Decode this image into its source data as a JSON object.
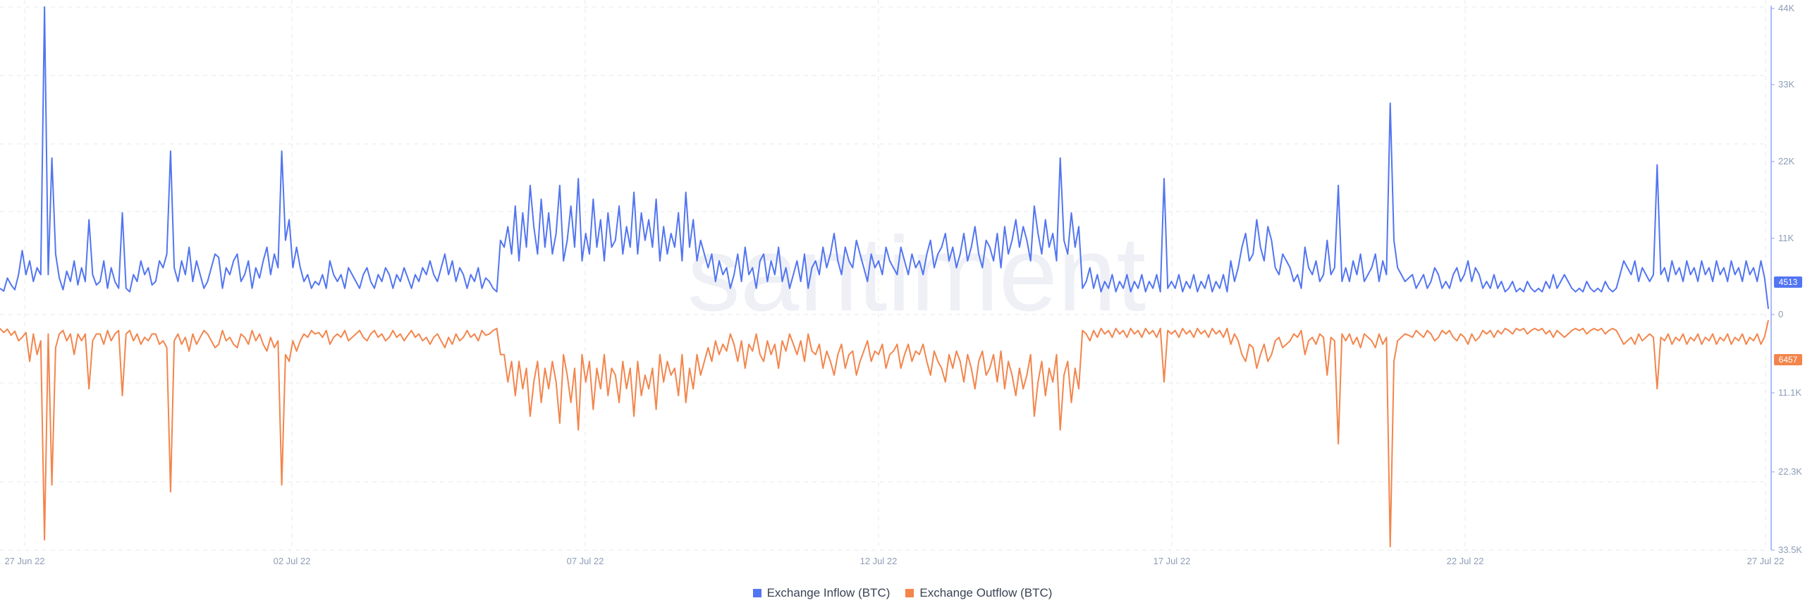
{
  "watermark": "santiment",
  "colors": {
    "inflow": "#5275f1",
    "outflow": "#f3854c",
    "grid": "#e6e9ef",
    "axis": "#8ea6f5"
  },
  "legend": [
    {
      "label": "Exchange Inflow (BTC)",
      "color": "#5275f1"
    },
    {
      "label": "Exchange Outflow (BTC)",
      "color": "#f3854c"
    }
  ],
  "axis": {
    "x_ticks": [
      "27 Jun 22",
      "02 Jul 22",
      "07 Jul 22",
      "12 Jul 22",
      "17 Jul 22",
      "22 Jul 22",
      "27 Jul 22"
    ],
    "y_top_ticks": [
      "44K",
      "33K",
      "22K",
      "11K",
      "0"
    ],
    "y_bottom_ticks": [
      "11.1K",
      "22.3K",
      "33.5K"
    ]
  },
  "badges": {
    "inflow": "4513",
    "outflow": "6457"
  },
  "chart_data": {
    "type": "line",
    "x_range": [
      "2022-06-27",
      "2022-07-27"
    ],
    "interval": "hourly",
    "grid": true,
    "legend_position": "bottom-center",
    "panels": [
      {
        "series": "Exchange Inflow (BTC)",
        "ylim": [
          0,
          44000
        ],
        "baseline": 2800,
        "values_k": [
          3,
          2.6,
          4.5,
          3.5,
          2.8,
          5,
          8.5,
          5,
          7,
          4,
          6,
          5,
          44,
          5,
          22,
          8,
          4.5,
          2.8,
          5.5,
          4,
          7,
          3.5,
          6,
          4,
          13,
          5,
          3.5,
          4,
          7,
          3,
          6,
          4,
          3,
          14,
          3,
          2.5,
          5,
          4,
          7,
          5,
          6,
          3.5,
          4,
          7,
          6,
          8,
          23,
          6,
          4,
          7,
          5,
          9,
          4,
          7,
          5,
          3,
          4,
          6,
          8,
          7.5,
          3,
          6,
          5,
          7,
          8,
          4,
          5,
          7,
          3,
          6,
          4.5,
          7,
          9,
          5,
          8,
          6,
          23,
          10,
          13,
          6,
          9,
          6,
          4,
          5,
          3,
          4,
          3.5,
          5,
          3,
          7,
          5,
          4,
          5,
          3,
          6,
          5,
          4,
          3,
          5,
          6,
          4,
          3,
          5,
          4,
          6,
          5,
          3,
          5,
          4,
          6,
          4.5,
          3,
          5,
          4,
          6,
          5,
          7,
          5,
          4,
          6,
          8,
          5,
          7,
          4,
          6,
          5,
          3,
          5,
          4,
          6,
          3,
          4.5,
          4,
          3,
          2.5,
          10,
          9,
          12,
          8,
          15,
          7,
          14,
          9,
          18,
          12,
          8,
          16,
          9,
          14,
          8,
          11,
          18,
          7,
          10,
          15,
          9,
          19,
          7,
          11,
          8,
          16,
          9,
          13,
          7,
          14,
          9,
          10,
          15,
          8,
          12,
          9,
          17,
          8,
          14,
          10,
          13,
          9,
          16,
          7,
          12,
          8,
          11,
          9,
          14,
          7,
          17,
          9,
          13,
          7,
          10,
          8,
          6,
          8,
          4,
          7,
          5,
          6,
          3,
          5,
          8,
          4,
          9,
          5,
          6,
          3,
          7,
          8,
          4,
          7,
          5,
          9,
          4,
          6,
          3,
          5,
          7,
          4,
          8,
          3,
          6,
          7,
          5,
          9,
          6,
          8,
          11,
          7,
          5,
          9,
          7,
          6,
          10,
          8,
          6,
          4,
          8,
          6,
          7,
          5,
          9,
          7,
          6,
          5,
          9,
          7,
          5,
          8,
          6,
          7,
          5,
          8,
          10,
          6,
          8,
          9,
          11,
          7,
          9,
          6,
          8,
          11,
          7,
          9,
          12,
          8,
          6,
          10,
          9,
          7,
          11,
          6,
          12,
          8,
          10,
          13,
          9,
          12,
          10,
          7,
          15,
          11,
          8,
          13,
          9,
          11,
          7,
          22,
          10,
          8,
          14,
          9,
          12,
          3,
          4,
          6,
          3,
          5,
          2.5,
          4,
          3,
          5,
          2.5,
          4,
          3,
          5,
          2.5,
          4,
          3,
          5,
          2.5,
          4,
          3,
          5,
          2.5,
          19,
          3,
          4,
          3,
          5,
          2.5,
          4,
          3,
          5,
          2.5,
          4,
          3,
          5,
          2.5,
          4,
          3,
          5,
          2.5,
          7,
          4,
          6,
          9,
          11,
          7,
          8,
          13,
          9,
          7,
          12,
          10,
          6,
          5,
          8,
          7,
          6,
          4,
          5,
          3,
          9,
          6,
          5,
          7,
          4,
          5,
          10,
          5,
          6,
          18,
          4,
          6,
          4,
          7,
          5,
          8,
          4,
          5,
          6,
          8,
          4,
          7,
          5,
          30,
          10,
          6,
          5,
          4,
          4.5,
          5,
          3,
          4,
          5,
          3,
          4,
          6,
          5,
          3,
          4,
          3,
          5,
          6,
          4,
          5,
          7,
          4,
          6,
          5,
          3,
          4,
          3,
          5,
          3,
          4,
          2.5,
          3,
          4,
          2.5,
          3,
          2.5,
          4,
          3,
          2.5,
          3,
          2.5,
          4,
          3,
          5,
          3,
          4,
          5,
          4,
          3,
          2.5,
          3,
          2.5,
          4,
          3,
          2.5,
          3,
          2.5,
          4,
          3,
          2.5,
          3,
          5,
          7,
          6,
          5,
          7,
          4,
          6,
          5,
          4,
          5,
          21,
          5,
          6,
          4,
          7,
          5,
          6,
          4,
          7,
          5,
          6,
          4,
          7,
          5,
          6,
          4,
          7,
          5,
          6,
          4,
          7,
          5,
          6,
          4,
          7,
          5,
          6,
          4,
          7,
          4.5,
          0
        ],
        "current_value": 4513
      },
      {
        "series": "Exchange Outflow (BTC)",
        "ylim": [
          0,
          33500
        ],
        "baseline": 1300,
        "values_k": [
          1.2,
          1.8,
          1.3,
          2.2,
          1.6,
          3,
          2.5,
          1.8,
          6,
          2,
          5,
          3,
          32,
          2,
          24,
          4,
          2,
          1.5,
          3,
          2,
          5,
          2,
          3,
          2,
          10,
          3,
          2,
          2,
          3.5,
          1.5,
          3,
          2,
          1.5,
          11,
          2,
          1.5,
          3,
          2,
          3.5,
          2.5,
          3,
          2,
          2,
          3.5,
          3,
          4,
          25,
          3,
          2,
          3.5,
          2.5,
          4.5,
          2,
          3.5,
          2.5,
          1.5,
          2,
          3,
          4,
          3.5,
          1.5,
          3,
          2.5,
          3.5,
          4,
          2,
          2.5,
          3.5,
          1.5,
          3,
          2,
          3.5,
          4.5,
          2.5,
          4,
          3,
          24,
          5,
          6,
          3,
          4.5,
          3,
          2,
          2.5,
          1.5,
          2,
          1.8,
          2.5,
          1.5,
          3.5,
          2.5,
          2,
          2.5,
          1.5,
          3,
          2.5,
          2,
          1.5,
          2.5,
          3,
          2,
          1.5,
          2.5,
          2,
          3,
          2.5,
          1.5,
          2.5,
          2,
          3,
          2.2,
          1.5,
          2.5,
          2,
          3,
          2.5,
          3.5,
          2.5,
          2,
          3,
          4,
          2.5,
          3.5,
          2,
          3,
          2.5,
          1.5,
          2.5,
          2,
          3,
          1.5,
          2.2,
          2,
          1.5,
          1.2,
          5,
          5,
          9,
          6,
          11,
          6,
          10,
          7,
          14,
          9,
          6,
          12,
          7,
          10,
          6,
          9,
          15,
          5,
          8,
          12,
          7,
          16,
          5,
          9,
          6,
          13,
          7,
          10,
          5,
          11,
          7,
          8,
          12,
          6,
          10,
          7,
          14,
          6,
          11,
          8,
          10,
          7,
          13,
          5,
          9,
          6,
          8,
          7,
          11,
          5,
          12,
          7,
          10,
          5,
          8,
          6,
          4,
          6,
          3,
          5,
          3.5,
          4.5,
          2,
          3.5,
          6,
          3,
          7,
          3.5,
          4.5,
          2,
          5,
          6,
          3,
          5,
          3.5,
          7,
          3,
          4.5,
          2,
          3.5,
          5,
          3,
          6,
          2,
          4.5,
          5,
          3.5,
          7,
          4.5,
          6,
          8,
          5,
          3.5,
          7,
          5,
          4.5,
          8,
          6,
          4.5,
          3,
          6,
          4.5,
          5,
          3.5,
          7,
          5,
          4.5,
          3.5,
          7,
          5,
          3.5,
          6,
          4.5,
          5,
          3.5,
          6,
          8,
          4.5,
          6,
          7,
          9,
          5,
          7,
          4.5,
          6,
          9,
          5,
          7,
          10,
          6,
          4.5,
          8,
          7,
          5,
          9,
          4.5,
          10,
          6,
          8,
          11,
          7,
          10,
          8,
          5,
          14,
          9,
          6,
          11,
          7,
          9,
          5,
          16,
          8,
          6,
          12,
          7,
          10,
          1.5,
          2,
          3,
          1.5,
          2.5,
          1.2,
          2,
          1.5,
          2.5,
          1.2,
          2,
          1.5,
          2.5,
          1.2,
          2,
          1.5,
          2.5,
          1.2,
          2,
          1.5,
          2.5,
          1.2,
          9,
          1.5,
          2,
          1.5,
          2.5,
          1.2,
          2,
          1.5,
          2.5,
          1.2,
          2,
          1.5,
          2.5,
          1.2,
          2,
          1.5,
          2.5,
          1.2,
          3.5,
          2,
          3,
          5,
          6,
          3.5,
          4,
          7,
          5,
          3.5,
          6,
          5,
          3,
          2.5,
          4,
          3.5,
          3,
          2,
          2.5,
          1.5,
          5,
          3,
          2.5,
          3.5,
          2,
          2.5,
          8,
          2.5,
          3,
          18,
          2,
          3,
          2,
          3.5,
          2.5,
          4,
          2,
          2.5,
          3,
          4,
          2,
          3.5,
          2.5,
          33,
          6,
          3,
          2.5,
          2,
          2.2,
          2.5,
          1.5,
          2,
          2.5,
          1.5,
          2,
          3,
          2.5,
          1.5,
          2,
          1.5,
          2.5,
          3,
          2,
          2.5,
          3.5,
          2,
          3,
          2.5,
          1.5,
          2,
          1.5,
          2.5,
          1.5,
          2,
          1.2,
          1.5,
          2,
          1.2,
          1.5,
          1.2,
          2,
          1.5,
          1.2,
          1.5,
          1.2,
          2,
          1.5,
          2.5,
          1.5,
          2,
          2.5,
          2,
          1.5,
          1.2,
          1.5,
          1.2,
          2,
          1.5,
          1.2,
          1.5,
          1.2,
          2,
          1.5,
          1.2,
          1.5,
          2.5,
          3.5,
          3,
          2.5,
          3.5,
          2,
          3,
          2.5,
          2,
          2.5,
          10,
          2.5,
          3,
          2,
          3.5,
          2.5,
          3,
          2,
          3.5,
          2.5,
          3,
          2,
          3.5,
          2.5,
          3,
          2,
          3.5,
          2.5,
          3,
          2,
          3.5,
          2.5,
          3,
          2,
          3.5,
          2.5,
          3,
          2,
          3.5,
          2.4,
          0
        ],
        "current_value": 6457
      }
    ]
  }
}
